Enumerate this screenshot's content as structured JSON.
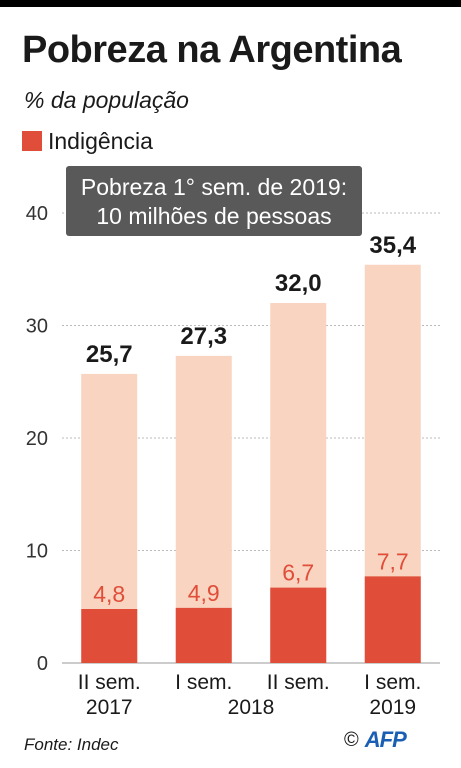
{
  "header": {
    "title": "Pobreza na Argentina",
    "subtitle": "% da população"
  },
  "legend": {
    "label": "Indigência",
    "color": "#e04e39"
  },
  "annotation": {
    "line1": "Pobreza 1° sem. de 2019:",
    "line2": "10 milhões de pessoas"
  },
  "footer": {
    "source": "Fonte: Indec",
    "copyright": "©",
    "logo_text": "AFP",
    "logo_color": "#1a5fb4"
  },
  "colors": {
    "poverty": "#f9d4c1",
    "indigence": "#e04e39",
    "poverty_label": "#1a1a1a",
    "indigence_label": "#e04e39",
    "grid": "#bbbbbb",
    "axis_text": "#333333"
  },
  "chart_data": {
    "type": "bar",
    "categories": [
      [
        "II sem.",
        "2017"
      ],
      [
        "I sem.",
        ""
      ],
      [
        "II sem.",
        ""
      ],
      [
        "I sem.",
        "2019"
      ]
    ],
    "year_labels_between": [
      {
        "after_index": 1,
        "label": "2018"
      }
    ],
    "series": [
      {
        "values": [
          25.7,
          27.3,
          32.0,
          35.4
        ],
        "labels": [
          "25,7",
          "27,3",
          "32,0",
          "35,4"
        ]
      },
      {
        "name": "Indigência",
        "values": [
          4.8,
          4.9,
          6.7,
          7.7
        ],
        "labels": [
          "4,8",
          "4,9",
          "6,7",
          "7,7"
        ]
      }
    ],
    "ylim": [
      0,
      40
    ],
    "yticks": [
      0,
      10,
      20,
      30,
      40
    ],
    "grid": true,
    "legend_position": "top-left"
  }
}
